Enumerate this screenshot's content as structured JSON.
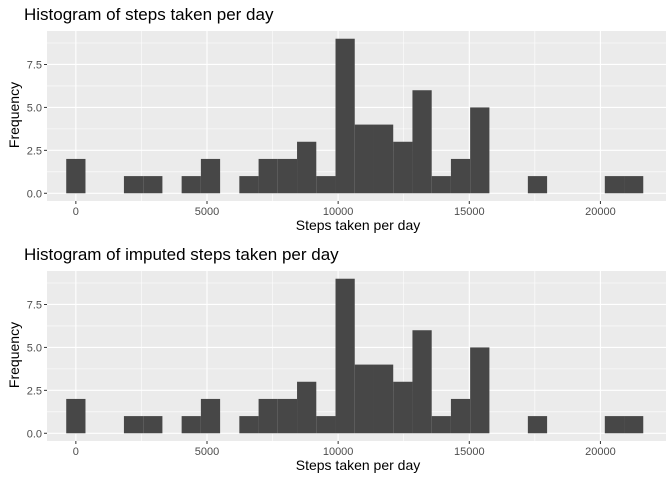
{
  "chart_data": [
    {
      "type": "bar",
      "title": "Histogram of steps taken per day",
      "xlabel": "Steps taken per day",
      "ylabel": "Frequency",
      "xlim": [
        -1100,
        22500
      ],
      "ylim": [
        -0.45,
        9.45
      ],
      "x_ticks": [
        0,
        5000,
        10000,
        15000,
        20000
      ],
      "x_tick_labels": [
        "0",
        "5000",
        "10000",
        "15000",
        "20000"
      ],
      "y_ticks": [
        0,
        2.5,
        5,
        7.5
      ],
      "y_tick_labels": [
        "0.0",
        "2.5",
        "5.0",
        "7.5"
      ],
      "bin_width": 733,
      "bins": [
        {
          "x_start": -367,
          "x_end": 367,
          "count": 2
        },
        {
          "x_start": 1833,
          "x_end": 2567,
          "count": 1
        },
        {
          "x_start": 2567,
          "x_end": 3300,
          "count": 1
        },
        {
          "x_start": 4033,
          "x_end": 4767,
          "count": 1
        },
        {
          "x_start": 4767,
          "x_end": 5500,
          "count": 2
        },
        {
          "x_start": 6233,
          "x_end": 6967,
          "count": 1
        },
        {
          "x_start": 6967,
          "x_end": 7700,
          "count": 2
        },
        {
          "x_start": 7700,
          "x_end": 8433,
          "count": 2
        },
        {
          "x_start": 8433,
          "x_end": 9167,
          "count": 3
        },
        {
          "x_start": 9167,
          "x_end": 9900,
          "count": 1
        },
        {
          "x_start": 9900,
          "x_end": 10633,
          "count": 9
        },
        {
          "x_start": 10633,
          "x_end": 11367,
          "count": 4
        },
        {
          "x_start": 11367,
          "x_end": 12100,
          "count": 4
        },
        {
          "x_start": 12100,
          "x_end": 12833,
          "count": 3
        },
        {
          "x_start": 12833,
          "x_end": 13567,
          "count": 6
        },
        {
          "x_start": 13567,
          "x_end": 14300,
          "count": 1
        },
        {
          "x_start": 14300,
          "x_end": 15033,
          "count": 2
        },
        {
          "x_start": 15033,
          "x_end": 15767,
          "count": 5
        },
        {
          "x_start": 17233,
          "x_end": 17967,
          "count": 1
        },
        {
          "x_start": 20167,
          "x_end": 20900,
          "count": 1
        },
        {
          "x_start": 20900,
          "x_end": 21633,
          "count": 1
        }
      ],
      "grid": true,
      "colors": {
        "panel_bg": "#ebebeb",
        "grid": "#ffffff",
        "bar": "#474747"
      }
    },
    {
      "type": "bar",
      "title": "Histogram of imputed steps taken per day",
      "xlabel": "Steps taken per day",
      "ylabel": "Frequency",
      "xlim": [
        -1100,
        22500
      ],
      "ylim": [
        -0.45,
        9.45
      ],
      "x_ticks": [
        0,
        5000,
        10000,
        15000,
        20000
      ],
      "x_tick_labels": [
        "0",
        "5000",
        "10000",
        "15000",
        "20000"
      ],
      "y_ticks": [
        0,
        2.5,
        5,
        7.5
      ],
      "y_tick_labels": [
        "0.0",
        "2.5",
        "5.0",
        "7.5"
      ],
      "bin_width": 733,
      "bins": [
        {
          "x_start": -367,
          "x_end": 367,
          "count": 2
        },
        {
          "x_start": 1833,
          "x_end": 2567,
          "count": 1
        },
        {
          "x_start": 2567,
          "x_end": 3300,
          "count": 1
        },
        {
          "x_start": 4033,
          "x_end": 4767,
          "count": 1
        },
        {
          "x_start": 4767,
          "x_end": 5500,
          "count": 2
        },
        {
          "x_start": 6233,
          "x_end": 6967,
          "count": 1
        },
        {
          "x_start": 6967,
          "x_end": 7700,
          "count": 2
        },
        {
          "x_start": 7700,
          "x_end": 8433,
          "count": 2
        },
        {
          "x_start": 8433,
          "x_end": 9167,
          "count": 3
        },
        {
          "x_start": 9167,
          "x_end": 9900,
          "count": 1
        },
        {
          "x_start": 9900,
          "x_end": 10633,
          "count": 9
        },
        {
          "x_start": 10633,
          "x_end": 11367,
          "count": 4
        },
        {
          "x_start": 11367,
          "x_end": 12100,
          "count": 4
        },
        {
          "x_start": 12100,
          "x_end": 12833,
          "count": 3
        },
        {
          "x_start": 12833,
          "x_end": 13567,
          "count": 6
        },
        {
          "x_start": 13567,
          "x_end": 14300,
          "count": 1
        },
        {
          "x_start": 14300,
          "x_end": 15033,
          "count": 2
        },
        {
          "x_start": 15033,
          "x_end": 15767,
          "count": 5
        },
        {
          "x_start": 17233,
          "x_end": 17967,
          "count": 1
        },
        {
          "x_start": 20167,
          "x_end": 20900,
          "count": 1
        },
        {
          "x_start": 20900,
          "x_end": 21633,
          "count": 1
        }
      ],
      "grid": true,
      "colors": {
        "panel_bg": "#ebebeb",
        "grid": "#ffffff",
        "bar": "#474747"
      }
    }
  ]
}
